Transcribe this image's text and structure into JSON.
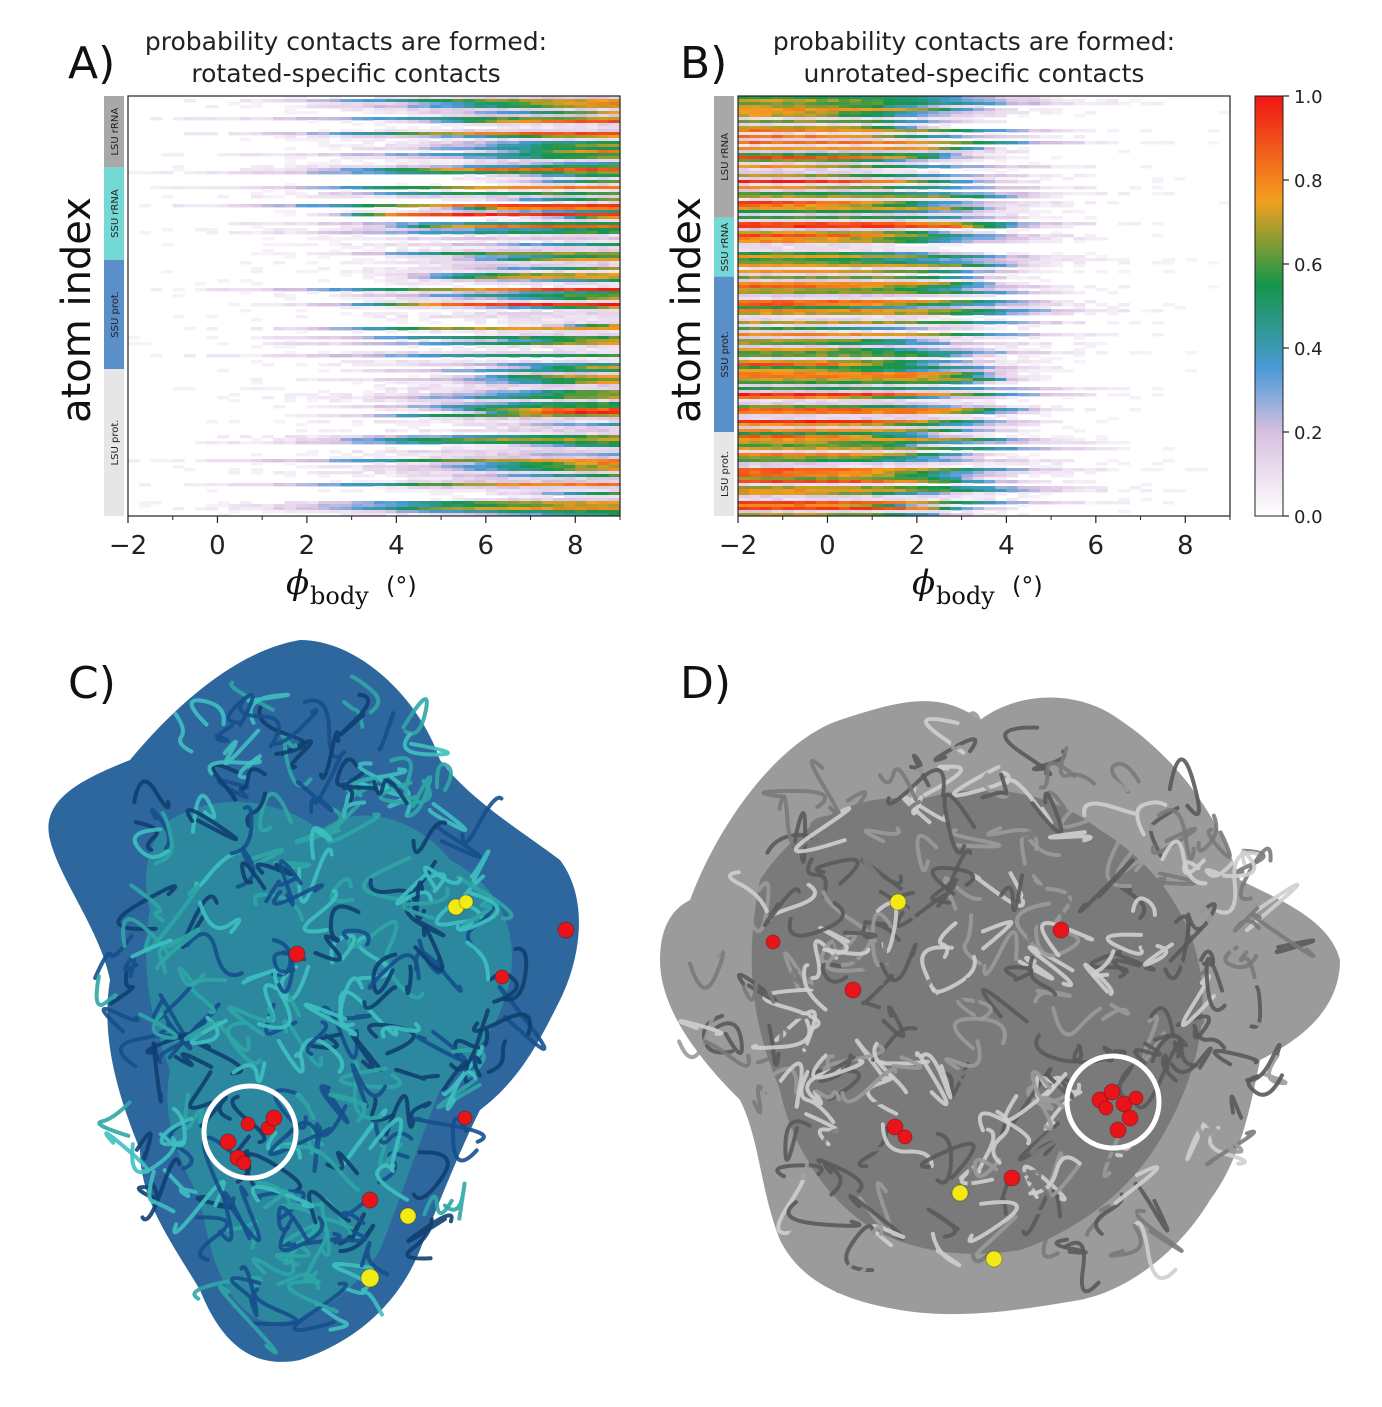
{
  "figure": {
    "panels": {
      "A": {
        "letter": "A)",
        "title_line1": "probability contacts are formed:",
        "title_line2": "rotated-specific contacts"
      },
      "B": {
        "letter": "B)",
        "title_line1": "probability contacts are formed:",
        "title_line2": "unrotated-specific contacts"
      },
      "C": {
        "letter": "C)"
      },
      "D": {
        "letter": "D)"
      }
    },
    "ylabel": "atom index",
    "xlabel_symbol": "ϕ",
    "xlabel_sub": "body",
    "xlabel_unit": " (°)",
    "colors": {
      "lsu_rrna": "#a8a8a8",
      "ssu_rrna": "#74d8d4",
      "ssu_prot": "#5b8fc9",
      "lsu_prot": "#e6e6e6",
      "red_atom": "#e8141a",
      "yellow_atom": "#f2ea14",
      "teal_tube": "#2fa6a6",
      "blue_tube": "#16508c",
      "grey_tube": "#7a7a7a"
    }
  },
  "chart_data": [
    {
      "type": "heatmap",
      "title": "probability contacts are formed: rotated-specific contacts",
      "xlabel": "ϕbody (°)",
      "ylabel": "atom index",
      "xlim": [
        -2,
        9
      ],
      "x_ticks": [
        "−2",
        "0",
        "2",
        "4",
        "6",
        "8"
      ],
      "x_tick_values": [
        -2,
        0,
        2,
        4,
        6,
        8
      ],
      "groups": [
        {
          "label": "LSU rRNA",
          "fraction": 0.17,
          "color_key": "lsu_rrna"
        },
        {
          "label": "SSU rRNA",
          "fraction": 0.22,
          "color_key": "ssu_rrna"
        },
        {
          "label": "SSU prot.",
          "fraction": 0.26,
          "color_key": "ssu_prot"
        },
        {
          "label": "LSU prot.",
          "fraction": 0.35,
          "color_key": "lsu_prot"
        }
      ],
      "onset_profile": "contacts form as ϕbody increases; most rows reach probability ~1 between 4° and 9°"
    },
    {
      "type": "heatmap",
      "title": "probability contacts are formed: unrotated-specific contacts",
      "xlabel": "ϕbody (°)",
      "ylabel": "atom index",
      "xlim": [
        -2,
        9
      ],
      "x_ticks": [
        "−2",
        "0",
        "2",
        "4",
        "6",
        "8"
      ],
      "x_tick_values": [
        -2,
        0,
        2,
        4,
        6,
        8
      ],
      "groups": [
        {
          "label": "LSU rRNA",
          "fraction": 0.29,
          "color_key": "lsu_rrna"
        },
        {
          "label": "SSU rRNA",
          "fraction": 0.14,
          "color_key": "ssu_rrna"
        },
        {
          "label": "SSU prot.",
          "fraction": 0.37,
          "color_key": "ssu_prot"
        },
        {
          "label": "LSU prot.",
          "fraction": 0.2,
          "color_key": "lsu_prot"
        }
      ],
      "onset_profile": "contacts present at low ϕbody and lost between 2° and 4°"
    }
  ],
  "colorbar": {
    "ticks": [
      "0.0",
      "0.2",
      "0.4",
      "0.6",
      "0.8",
      "1.0"
    ],
    "tick_values": [
      0.0,
      0.2,
      0.4,
      0.6,
      0.8,
      1.0
    ],
    "stops": [
      {
        "v": 0.0,
        "c": "#ffffff"
      },
      {
        "v": 0.2,
        "c": "#d8bfe0"
      },
      {
        "v": 0.35,
        "c": "#4a9ad6"
      },
      {
        "v": 0.55,
        "c": "#14964a"
      },
      {
        "v": 0.75,
        "c": "#f2a020"
      },
      {
        "v": 1.0,
        "c": "#f01414"
      }
    ]
  }
}
